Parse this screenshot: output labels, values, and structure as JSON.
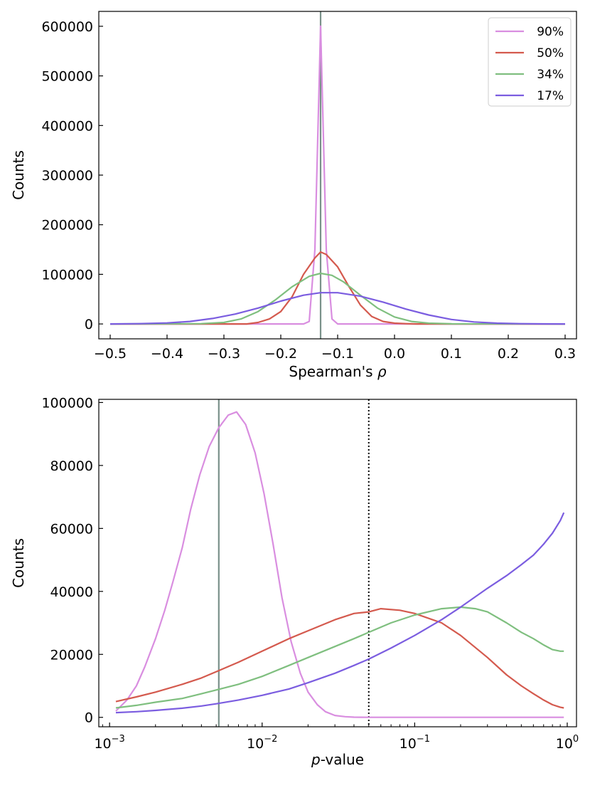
{
  "chart_data": [
    {
      "type": "line",
      "xscale": "linear",
      "title": "",
      "xlabel": "Spearman's ρ",
      "ylabel": "Counts",
      "xlim": [
        -0.52,
        0.32
      ],
      "ylim": [
        -30000,
        630000
      ],
      "xticks": [
        -0.5,
        -0.4,
        -0.3,
        -0.2,
        -0.1,
        0.0,
        0.1,
        0.2,
        0.3
      ],
      "xtick_labels": [
        "−0.5",
        "−0.4",
        "−0.3",
        "−0.2",
        "−0.1",
        "0.0",
        "0.1",
        "0.2",
        "0.3"
      ],
      "yticks": [
        0,
        100000,
        200000,
        300000,
        400000,
        500000,
        600000
      ],
      "ytick_labels": [
        "0",
        "100000",
        "200000",
        "300000",
        "400000",
        "500000",
        "600000"
      ],
      "legend": {
        "position": "top-right",
        "entries": [
          "90%",
          "50%",
          "34%",
          "17%"
        ]
      },
      "vlines": [
        {
          "x": -0.13,
          "color": "#7a918a",
          "style": "solid"
        }
      ],
      "series": [
        {
          "name": "90%",
          "color": "#d98ee0",
          "x": [
            -0.5,
            -0.16,
            -0.15,
            -0.14,
            -0.13,
            -0.12,
            -0.11,
            -0.1,
            -0.09,
            0.3
          ],
          "y": [
            0,
            0,
            5000,
            150000,
            600000,
            150000,
            10000,
            0,
            0,
            0
          ]
        },
        {
          "name": "50%",
          "color": "#d45a4e",
          "x": [
            -0.5,
            -0.26,
            -0.24,
            -0.22,
            -0.2,
            -0.18,
            -0.16,
            -0.14,
            -0.13,
            -0.12,
            -0.1,
            -0.08,
            -0.06,
            -0.04,
            -0.02,
            0.0,
            0.02,
            0.04,
            0.3
          ],
          "y": [
            0,
            0,
            3000,
            10000,
            25000,
            55000,
            100000,
            133000,
            145000,
            140000,
            115000,
            75000,
            38000,
            15000,
            5000,
            1500,
            500,
            0,
            0
          ]
        },
        {
          "name": "34%",
          "color": "#7fbf7f",
          "x": [
            -0.5,
            -0.34,
            -0.3,
            -0.27,
            -0.24,
            -0.21,
            -0.18,
            -0.15,
            -0.13,
            -0.11,
            -0.09,
            -0.06,
            -0.03,
            0.0,
            0.03,
            0.06,
            0.1,
            0.3
          ],
          "y": [
            0,
            500,
            3000,
            10000,
            25000,
            48000,
            75000,
            96000,
            102000,
            98000,
            85000,
            58000,
            32000,
            14000,
            5000,
            1500,
            300,
            0
          ]
        },
        {
          "name": "17%",
          "color": "#7b5de0",
          "x": [
            -0.5,
            -0.45,
            -0.4,
            -0.36,
            -0.32,
            -0.28,
            -0.24,
            -0.2,
            -0.16,
            -0.13,
            -0.1,
            -0.06,
            -0.02,
            0.02,
            0.06,
            0.1,
            0.14,
            0.18,
            0.22,
            0.26,
            0.3
          ],
          "y": [
            0,
            500,
            2000,
            5000,
            11000,
            20000,
            32000,
            46000,
            58000,
            63000,
            63000,
            56000,
            44000,
            30000,
            18000,
            9000,
            4000,
            1500,
            500,
            100,
            0
          ]
        }
      ]
    },
    {
      "type": "line",
      "xscale": "log",
      "title": "",
      "xlabel": "p-value",
      "ylabel": "Counts",
      "xlim": [
        0.00085,
        1.15
      ],
      "ylim": [
        -3000,
        101000
      ],
      "xticks": [
        0.001,
        0.01,
        0.1,
        1
      ],
      "xtick_bases": [
        "10",
        "10",
        "10",
        "10"
      ],
      "xtick_exponents": [
        "−3",
        "−2",
        "−1",
        "0"
      ],
      "yticks": [
        0,
        20000,
        40000,
        60000,
        80000,
        100000
      ],
      "ytick_labels": [
        "0",
        "20000",
        "40000",
        "60000",
        "80000",
        "100000"
      ],
      "vlines": [
        {
          "x": 0.0052,
          "color": "#7a918a",
          "style": "solid"
        },
        {
          "x": 0.05,
          "color": "#000000",
          "style": "dotted"
        }
      ],
      "series": [
        {
          "name": "90%",
          "color": "#d98ee0",
          "x": [
            0.0011,
            0.0013,
            0.0015,
            0.0017,
            0.002,
            0.0023,
            0.0026,
            0.003,
            0.0034,
            0.0039,
            0.0045,
            0.0052,
            0.006,
            0.0068,
            0.0078,
            0.009,
            0.0103,
            0.0118,
            0.0135,
            0.0155,
            0.0178,
            0.02,
            0.023,
            0.026,
            0.03,
            0.035,
            0.04,
            0.05,
            0.1,
            0.95
          ],
          "y": [
            2000,
            5500,
            10000,
            16000,
            25000,
            34000,
            43000,
            54000,
            66000,
            77000,
            86000,
            92000,
            96000,
            97000,
            93000,
            84000,
            71000,
            55000,
            38000,
            24000,
            14000,
            8000,
            4000,
            1800,
            600,
            200,
            50,
            0,
            0,
            0
          ]
        },
        {
          "name": "50%",
          "color": "#d45a4e",
          "x": [
            0.0011,
            0.0015,
            0.002,
            0.003,
            0.004,
            0.005,
            0.007,
            0.01,
            0.015,
            0.02,
            0.03,
            0.04,
            0.05,
            0.06,
            0.08,
            0.1,
            0.15,
            0.2,
            0.3,
            0.4,
            0.5,
            0.6,
            0.7,
            0.8,
            0.9,
            0.95
          ],
          "y": [
            5000,
            6500,
            8000,
            10500,
            12500,
            14500,
            17500,
            21000,
            25000,
            27500,
            31000,
            33000,
            33500,
            34500,
            34000,
            33000,
            30000,
            26000,
            19000,
            13500,
            10000,
            7500,
            5500,
            4000,
            3200,
            3000
          ]
        },
        {
          "name": "34%",
          "color": "#7fbf7f",
          "x": [
            0.0011,
            0.0015,
            0.002,
            0.003,
            0.004,
            0.005,
            0.007,
            0.01,
            0.015,
            0.02,
            0.03,
            0.04,
            0.05,
            0.07,
            0.1,
            0.15,
            0.2,
            0.25,
            0.3,
            0.4,
            0.5,
            0.6,
            0.7,
            0.8,
            0.9,
            0.95
          ],
          "y": [
            3000,
            3800,
            4800,
            6000,
            7500,
            8700,
            10500,
            13000,
            16500,
            19000,
            22500,
            25000,
            27000,
            30000,
            32500,
            34500,
            35000,
            34500,
            33500,
            30000,
            27000,
            25000,
            23000,
            21500,
            21000,
            21000
          ]
        },
        {
          "name": "17%",
          "color": "#7b5de0",
          "x": [
            0.0011,
            0.0015,
            0.002,
            0.003,
            0.004,
            0.005,
            0.007,
            0.01,
            0.015,
            0.02,
            0.03,
            0.04,
            0.05,
            0.07,
            0.1,
            0.15,
            0.2,
            0.3,
            0.4,
            0.5,
            0.6,
            0.7,
            0.8,
            0.9,
            0.95
          ],
          "y": [
            1500,
            1800,
            2200,
            2900,
            3600,
            4300,
            5500,
            7000,
            9000,
            11000,
            14000,
            16500,
            18500,
            22000,
            26000,
            31000,
            35000,
            41000,
            45000,
            48500,
            51500,
            55000,
            58500,
            62500,
            65000
          ]
        }
      ]
    }
  ]
}
